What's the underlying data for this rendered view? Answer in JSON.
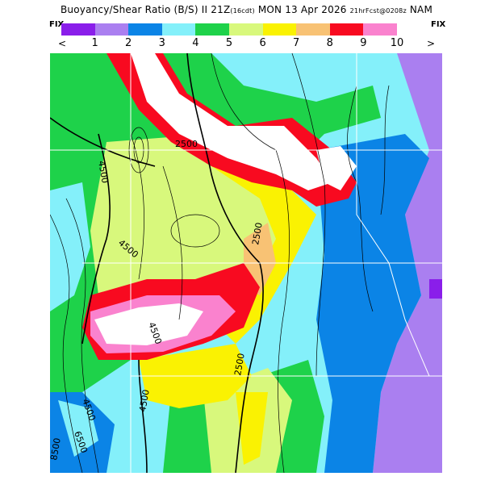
{
  "header": {
    "title_main": "Buoyancy/Shear Ratio (B/S) ",
    "title_valid": "II 21Z",
    "title_cdt": "(16cdt)",
    "title_date": " MON 13 Apr 2026 ",
    "title_fcst": "21hrFcst@0208z",
    "title_model": " NAM"
  },
  "legend": {
    "fix_left": "FIX",
    "fix_right": "FIX",
    "nav_prev": "<",
    "nav_next": ">",
    "ticks": [
      "1",
      "2",
      "3",
      "4",
      "5",
      "6",
      "7",
      "8",
      "9",
      "10"
    ],
    "colors": [
      "#8a1eea",
      "#aa7ff0",
      "#0b84e6",
      "#84f0fa",
      "#1ed24a",
      "#d8f87c",
      "#faf202",
      "#f8c274",
      "#f80a20",
      "#fa82ce"
    ]
  },
  "map": {
    "contour_labels": [
      "2500",
      "4500",
      "2500",
      "4500",
      "4500",
      "2500",
      "4500",
      "4500",
      "6500",
      "8500"
    ],
    "background_colors": {
      "land_low": "#aa7ff0",
      "water_blue": "#0b84e6",
      "light_cyan": "#84f0fa",
      "green": "#1ed24a",
      "light_green": "#d8f87c",
      "yellow": "#faf202",
      "orange": "#f8c274",
      "red": "#f80a20",
      "pink": "#fa82ce",
      "white": "#ffffff"
    }
  }
}
